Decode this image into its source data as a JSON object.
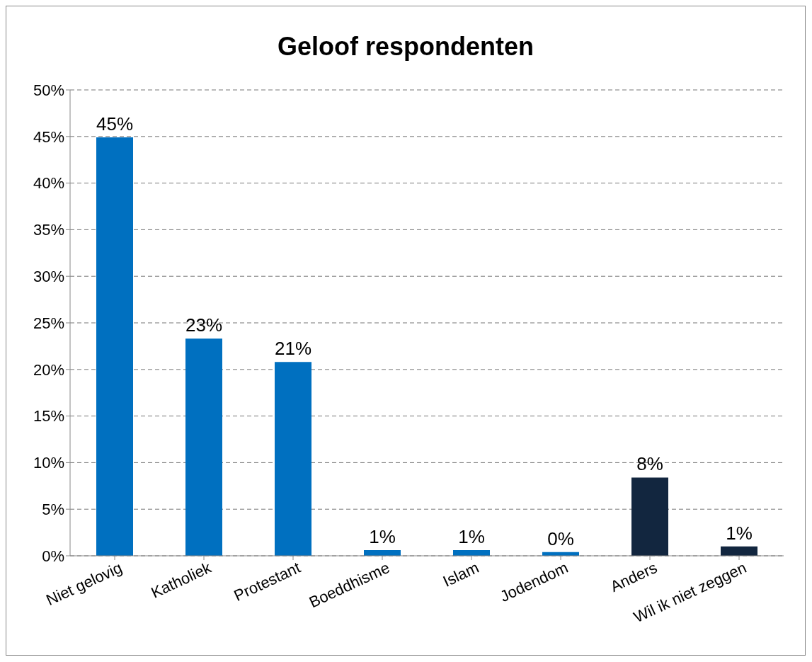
{
  "chart_data": {
    "type": "bar",
    "title": "Geloof respondenten",
    "categories": [
      "Niet gelovig",
      "Katholiek",
      "Protestant",
      "Boeddhisme",
      "Islam",
      "Jodendom",
      "Anders",
      "Wil ik niet zeggen"
    ],
    "values": [
      44.9,
      23.3,
      20.8,
      0.6,
      0.6,
      0.4,
      8.4,
      1.0
    ],
    "colors": [
      "#0070c0",
      "#0070c0",
      "#0070c0",
      "#0070c0",
      "#0070c0",
      "#0070c0",
      "#12263f",
      "#12263f"
    ],
    "value_labels": [
      "45%",
      "23%",
      "21%",
      "1%",
      "1%",
      "0%",
      "8%",
      "1%"
    ],
    "ylim": [
      0,
      50
    ],
    "yticks": [
      {
        "value": 0,
        "label": "0%"
      },
      {
        "value": 5,
        "label": "5%"
      },
      {
        "value": 10,
        "label": "10%"
      },
      {
        "value": 15,
        "label": "15%"
      },
      {
        "value": 20,
        "label": "20%"
      },
      {
        "value": 25,
        "label": "25%"
      },
      {
        "value": 30,
        "label": "30%"
      },
      {
        "value": 35,
        "label": "35%"
      },
      {
        "value": 40,
        "label": "40%"
      },
      {
        "value": 45,
        "label": "45%"
      },
      {
        "value": 50,
        "label": "50%"
      }
    ],
    "grid": "y",
    "legend": false
  }
}
